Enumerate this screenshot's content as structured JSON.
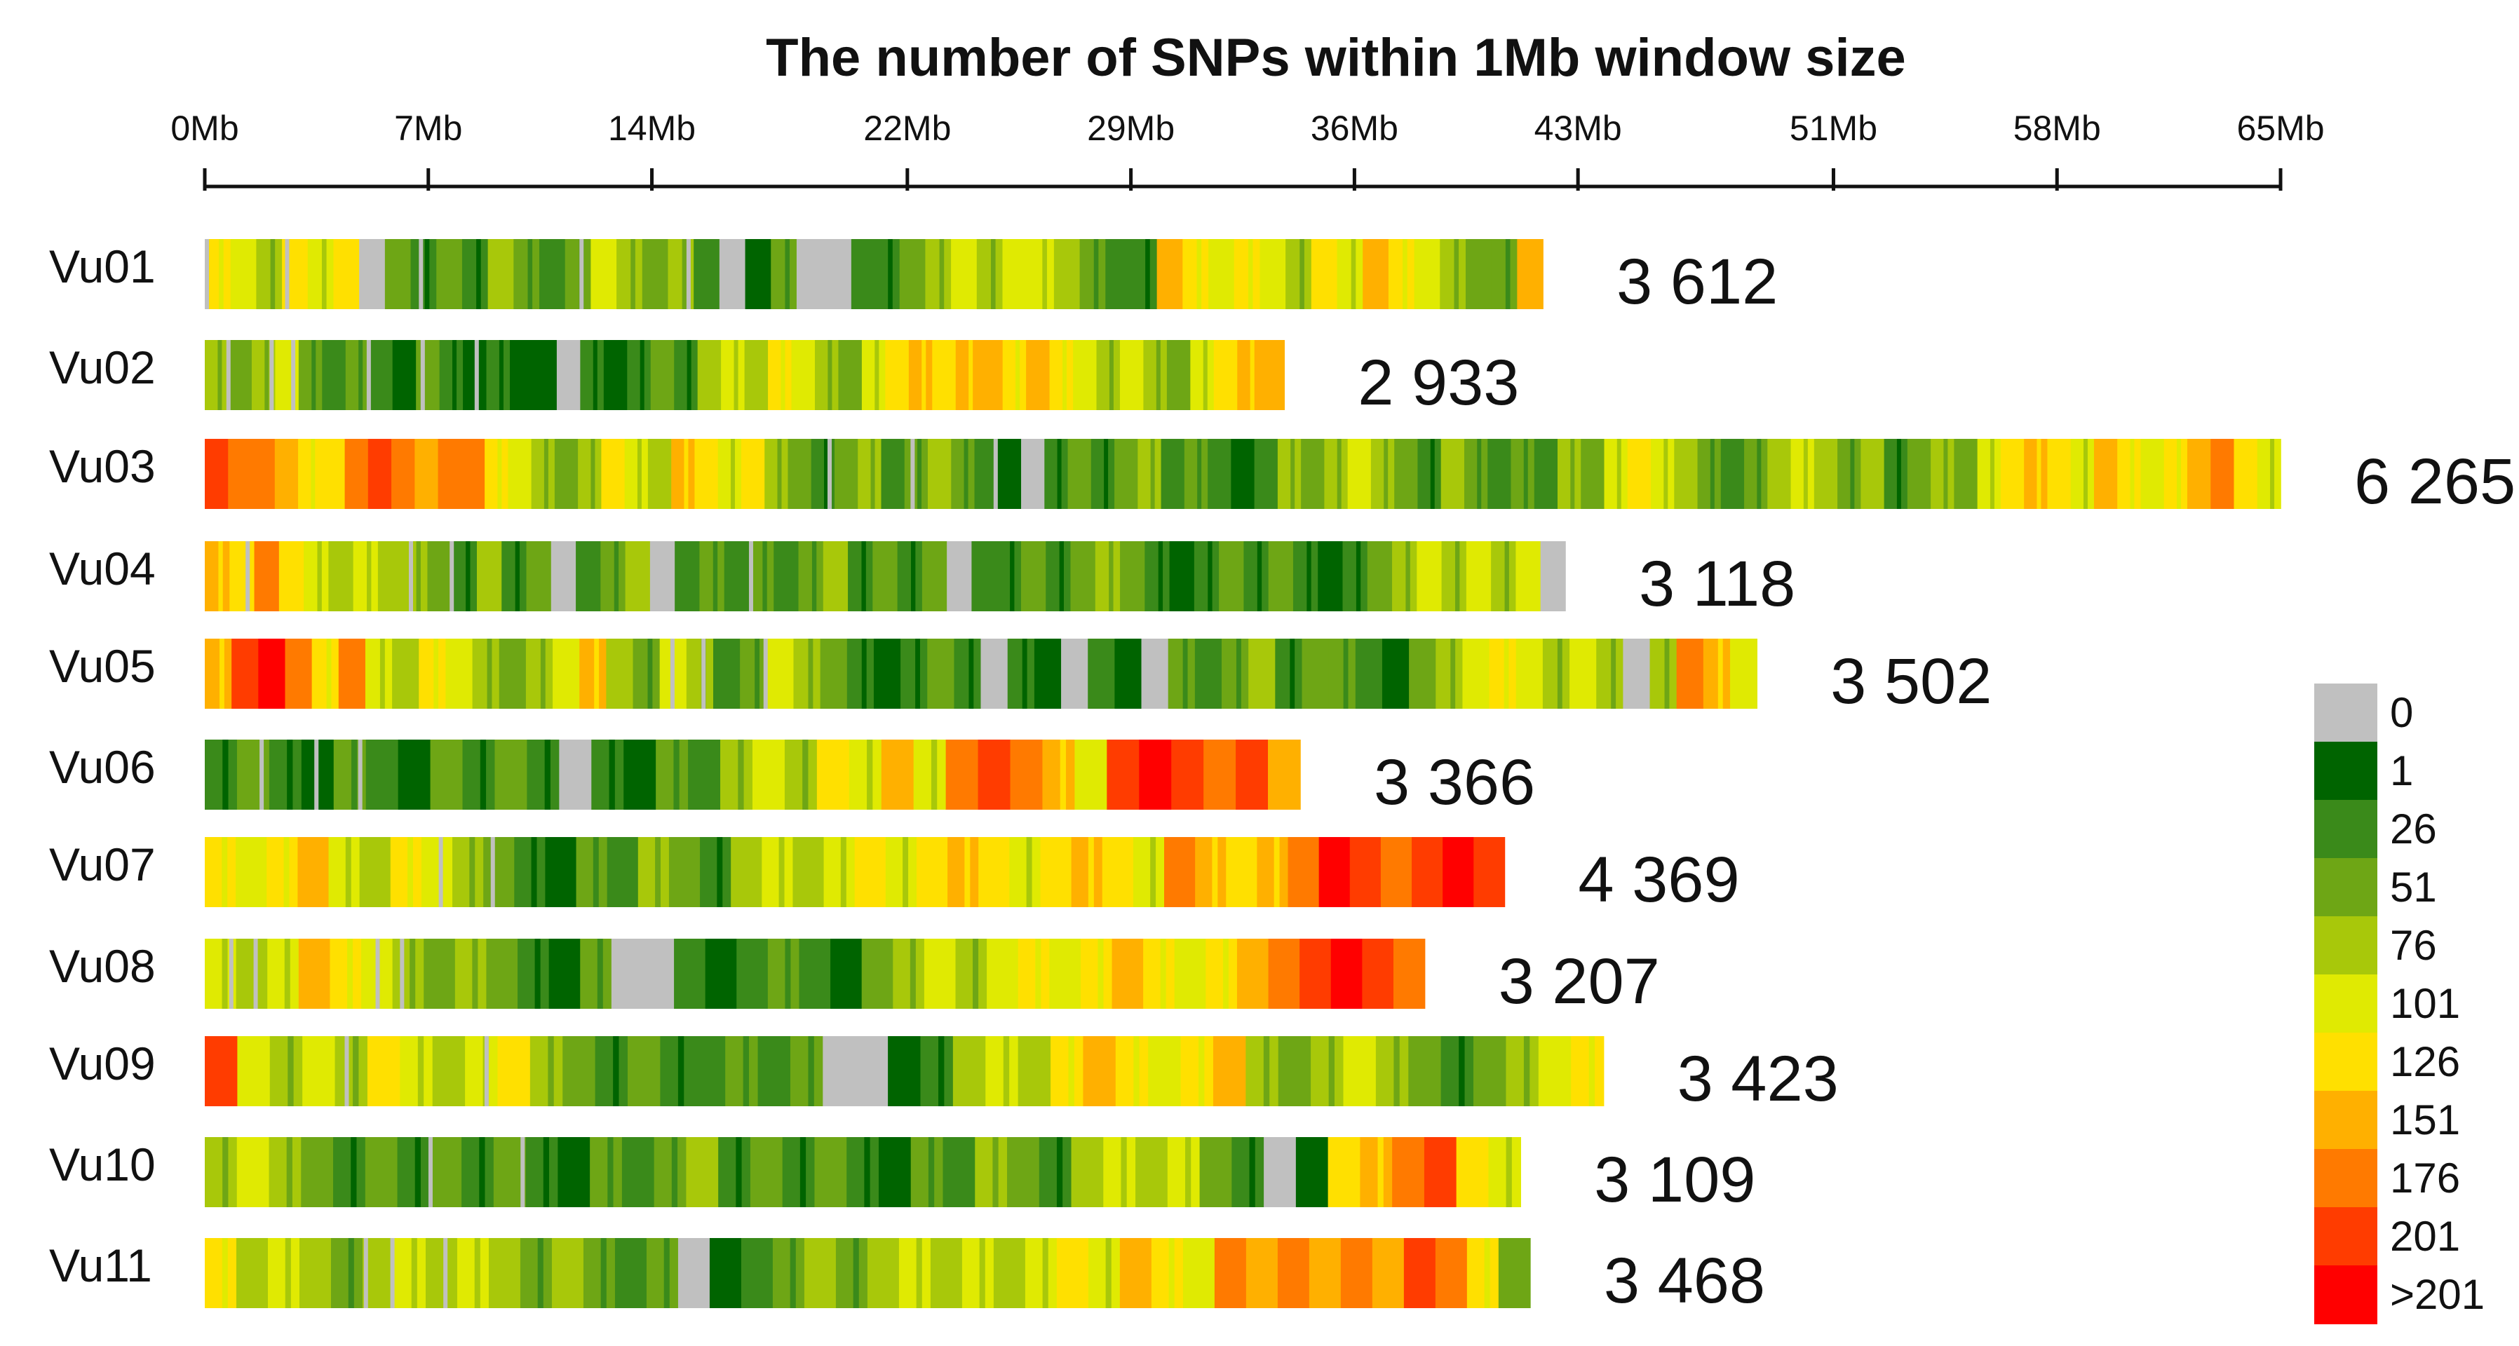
{
  "chart_data": {
    "type": "heatmap",
    "title": "The number of SNPs within 1Mb window size",
    "xaxis": {
      "min": 0,
      "max": 65,
      "unit": "Mb",
      "ticks": [
        0,
        7,
        14,
        22,
        29,
        36,
        43,
        51,
        58,
        65
      ],
      "tick_labels": [
        "0Mb",
        "7Mb",
        "14Mb",
        "22Mb",
        "29Mb",
        "36Mb",
        "43Mb",
        "51Mb",
        "58Mb",
        "65Mb"
      ]
    },
    "legend": {
      "position": "bottom-right",
      "labels": [
        "0",
        "1",
        "26",
        "51",
        "76",
        "101",
        "126",
        "151",
        "176",
        "201",
        ">201"
      ],
      "colors": [
        "#c0c0c0",
        "#006400",
        "#3a8a1a",
        "#6ea615",
        "#a8c80a",
        "#e0ea02",
        "#ffe000",
        "#ffb000",
        "#ff7a00",
        "#ff3c00",
        "#ff0000"
      ]
    },
    "chromosomes": [
      {
        "name": "Vu01",
        "length_mb": 41.9,
        "snp_total": "3 612"
      },
      {
        "name": "Vu02",
        "length_mb": 33.8,
        "snp_total": "2 933"
      },
      {
        "name": "Vu03",
        "length_mb": 65.0,
        "snp_total": "6 265"
      },
      {
        "name": "Vu04",
        "length_mb": 42.6,
        "snp_total": "3 118"
      },
      {
        "name": "Vu05",
        "length_mb": 48.6,
        "snp_total": "3 502"
      },
      {
        "name": "Vu06",
        "length_mb": 34.3,
        "snp_total": "3 366"
      },
      {
        "name": "Vu07",
        "length_mb": 40.7,
        "snp_total": "4 369"
      },
      {
        "name": "Vu08",
        "length_mb": 38.2,
        "snp_total": "3 207"
      },
      {
        "name": "Vu09",
        "length_mb": 43.8,
        "snp_total": "3 423"
      },
      {
        "name": "Vu10",
        "length_mb": 41.2,
        "snp_total": "3 109"
      },
      {
        "name": "Vu11",
        "length_mb": 41.5,
        "snp_total": "3 468"
      }
    ],
    "density_profiles": {
      "Vu01": [
        [
          "6,5,4,6,5,6,0,3,2,3,2,4,3,2,3,5,4,3,4,2,0,1,3,0,0,2,2,3,4,5,4,5,5,4,3,2,2,7,6,5,6,5,4,6,5,7,6,5,4,3,3,7"
        ],
        [
          "0,12,6,16,28,36,48"
        ]
      ],
      "Vu02": [
        [
          "4,3,4,5,3,2,3,2,1,3,2,1,2,1,1,0,2,1,2,3,2,4,5,4,6,5,4,3,5,6,7,6,7,7,6,7,6,5,4,5,4,3,5,6,7,7"
        ],
        [
          "2,6,8,15,20,25"
        ]
      ],
      "Vu03": [
        [
          "9,8,8,7,6,6,8,9,8,7,8,8,6,5,4,3,4,6,5,4,7,6,5,6,4,3,2,3,4,2,3,4,3,2,1,0,2,3,2,3,4,2,3,2,1,2,4,3,4,5,4,3,2,4,3,2,3,2,4,3,5,6,5,4,3,2,3,4,5,4,3,4,2,3,4,3,5,6,7,6,5,7,6,5,6,7,8,6,5"
        ],
        [
          "30,34,38"
        ]
      ],
      "Vu04": [
        [
          "7,6,8,6,5,4,5,4,4,3,2,4,2,3,0,2,3,4,0,2,3,2,3,2,3,4,2,3,2,3,0,2,2,3,2,3,4,3,2,1,2,3,2,3,2,1,2,3,4,5,4,5,4,5,0"
        ],
        [
          "3,15,18,40"
        ]
      ],
      "Vu05": [
        [
          "7,9,10,8,6,8,5,4,6,5,4,3,4,5,7,4,3,5,4,2,3,5,4,3,2,1,2,3,2,0,2,1,0,2,1,0,3,2,3,4,2,3,3,2,1,3,4,5,6,5,4,5,4,0,4,8,7,5"
        ],
        [
          "30,32,36,50"
        ]
      ],
      "Vu06": [
        [
          "2,3,2,1,3,2,1,3,2,3,2,0,2,1,3,2,4,5,4,6,5,7,5,8,9,8,7,5,9,10,9,8,9,7"
        ],
        [
          "5,10,14"
        ]
      ],
      "Vu07": [
        [
          "6,5,6,7,5,4,6,5,4,3,2,1,3,2,4,3,2,4,5,4,5,6,5,6,7,6,5,6,7,6,5,8,7,6,7,8,10,9,8,9,10,9"
        ],
        [
          "18,22"
        ]
      ],
      "Vu08": [
        [
          "5,4,5,7,6,5,4,3,4,3,2,1,3,0,0,2,1,2,3,2,1,3,4,5,4,5,6,5,6,7,6,5,6,7,8,9,10,9,8"
        ],
        [
          "2,4,14,16"
        ]
      ],
      "Vu09": [
        [
          "9,5,4,5,4,6,5,4,5,6,4,3,2,3,2,2,3,2,3,0,0,1,2,4,5,4,6,7,6,5,6,7,4,3,4,5,4,3,2,3,4,5,6"
        ],
        [
          "10,20"
        ]
      ],
      "Vu10": [
        [
          "4,5,4,3,2,3,2,3,2,3,2,1,3,2,3,4,2,3,2,3,2,1,3,2,4,3,2,4,5,4,5,3,2,0,1,6,7,8,9,6,5"
        ],
        [
          "17,24"
        ]
      ],
      "Vu11": [
        [
          "6,4,5,4,3,4,5,4,5,4,3,4,3,2,3,0,1,2,3,4,3,4,5,4,5,4,5,6,5,7,6,5,8,7,8,7,8,7,9,8,6,3"
        ],
        [
          "12,14,18"
        ]
      ]
    }
  }
}
